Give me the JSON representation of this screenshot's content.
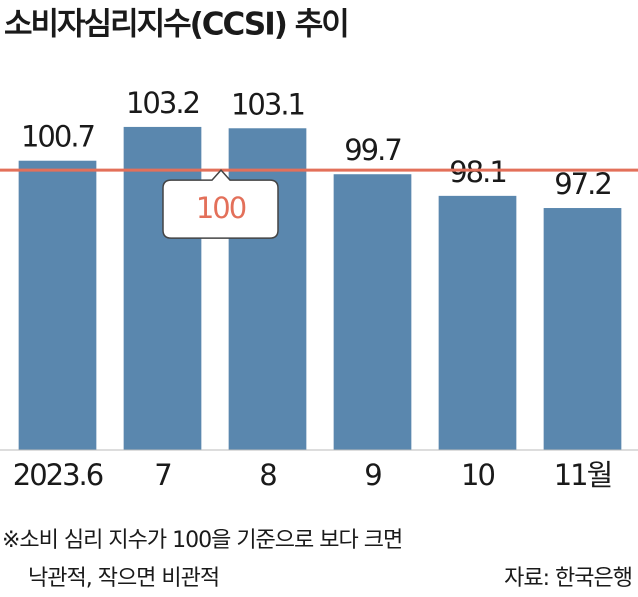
{
  "chart_data": {
    "type": "bar",
    "title": "소비자심리지수(CCSI) 추이",
    "categories": [
      "2023.6",
      "7",
      "8",
      "9",
      "10",
      "11월"
    ],
    "values": [
      100.7,
      103.2,
      103.1,
      99.7,
      98.1,
      97.2
    ],
    "color": "#5a87ae",
    "ylim": [
      79.3,
      110
    ],
    "reference_line": {
      "value": 100,
      "color": "#e3705a"
    },
    "notes": [
      "※소비 심리 지수가 100을 기준으로 보다 크면",
      "낙관적, 작으면 비관적"
    ],
    "source": "자료: 한국은행"
  }
}
